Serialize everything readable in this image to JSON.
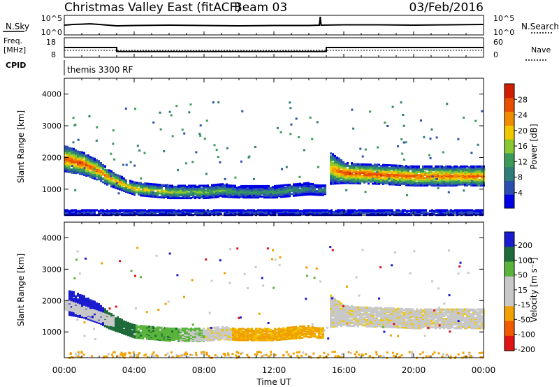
{
  "header": {
    "title": "Christmas Valley East (fitACF)",
    "beam": "Beam 03",
    "date": "03/Feb/2016"
  },
  "params": {
    "nsky_label": "N.Sky",
    "nsky_ticks": [
      "10^5",
      "10^0"
    ],
    "nsearch_label": "N.Search",
    "nsearch_ticks": [
      "10^5",
      "10^0"
    ],
    "freq_label": "Freq.",
    "freq_unit": "[MHz]",
    "freq_ticks": [
      "18",
      "8"
    ],
    "nave_label": "Nave",
    "nave_ticks": [
      "60",
      "0"
    ],
    "cpid_label": "CPID",
    "cpid_value": "themis 3300 RF"
  },
  "panels": {
    "power": {
      "ylabel": "Slant Range [km]",
      "yticks": [
        "4000",
        "3000",
        "2000",
        "1000"
      ],
      "cbar_label": "Power [dB]",
      "cbar_ticks": [
        "28",
        "24",
        "20",
        "16",
        "12",
        "8",
        "4"
      ]
    },
    "velocity": {
      "ylabel": "Slant Range [km]",
      "yticks": [
        "4000",
        "3000",
        "2000",
        "1000"
      ],
      "cbar_label": "Velocity [m s⁻¹]",
      "cbar_ticks": [
        "200",
        "100",
        "50",
        "15",
        "-15",
        "-50",
        "-100",
        "-200"
      ]
    }
  },
  "xaxis": {
    "label": "Time UT",
    "ticks": [
      "00:00",
      "04:00",
      "08:00",
      "12:00",
      "16:00",
      "20:00",
      "00:00"
    ]
  },
  "colors": {
    "power_scale": [
      "#0000e6",
      "#2a4fb0",
      "#2f7d7a",
      "#3a9a5a",
      "#8ac832",
      "#f0c800",
      "#f08c00",
      "#e85000",
      "#d21e00"
    ],
    "velocity_scale": [
      "#1a1ad0",
      "#1f6a3a",
      "#5ab43c",
      "#c8c8c8",
      "#c8c8c8",
      "#f0a000",
      "#f05a00",
      "#e01414"
    ]
  },
  "chart_data": [
    {
      "type": "line",
      "name": "N.Sky",
      "x_hours": [
        0,
        0.5,
        1,
        1.5,
        2,
        3,
        4,
        6,
        8,
        10,
        12,
        14,
        14.6,
        14.65,
        14.7,
        16,
        18,
        20,
        22,
        24
      ],
      "log10_value": [
        2.5,
        2.7,
        2.8,
        2.9,
        2.7,
        2.3,
        2.4,
        2.5,
        2.4,
        2.3,
        2.4,
        2.4,
        2.5,
        5.0,
        2.5,
        2.6,
        2.6,
        2.5,
        2.6,
        2.7
      ],
      "ylim_log10": [
        0,
        5
      ]
    },
    {
      "type": "line",
      "name": "Freq.",
      "x_hours": [
        0,
        3.0,
        3.0,
        15.0,
        15.0,
        24
      ],
      "values_mhz": [
        13,
        13,
        10.6,
        10.6,
        13,
        13
      ],
      "ylim": [
        8,
        18
      ]
    },
    {
      "type": "line",
      "name": "Nave",
      "x_hours": [
        0,
        24
      ],
      "values": [
        20,
        20
      ],
      "ylim": [
        0,
        60
      ]
    },
    {
      "type": "heatmap",
      "name": "Power",
      "x_range_hours": [
        0,
        24
      ],
      "y_range_km": [
        180,
        4500
      ],
      "bands": [
        {
          "name": "early echo",
          "x_hours": [
            0,
            1,
            2,
            2.5,
            3.5,
            4,
            5,
            6,
            7,
            8,
            9,
            10,
            12,
            13,
            14,
            14.5,
            15
          ],
          "center_km": [
            2000,
            1850,
            1600,
            1400,
            1150,
            1050,
            1000,
            950,
            950,
            950,
            1000,
            950,
            950,
            1000,
            1050,
            1000,
            1000
          ],
          "width_km": [
            400,
            350,
            300,
            250,
            200,
            200,
            200,
            200,
            200,
            200,
            200,
            180,
            180,
            180,
            180,
            150,
            150
          ],
          "peak_db": [
            30,
            30,
            28,
            26,
            24,
            24,
            22,
            20,
            18,
            18,
            16,
            14,
            14,
            14,
            12,
            12,
            12
          ]
        },
        {
          "name": "late echo",
          "x_hours": [
            15.2,
            16,
            18,
            20,
            22,
            24
          ],
          "center_km": [
            1700,
            1550,
            1500,
            1450,
            1450,
            1450
          ],
          "width_km": [
            500,
            320,
            300,
            300,
            300,
            300
          ],
          "peak_db": [
            24,
            30,
            30,
            28,
            28,
            28
          ]
        },
        {
          "name": "ground scatter",
          "x_hours": [
            0,
            24
          ],
          "center_km": [
            300,
            300
          ],
          "width_km": [
            80,
            80
          ],
          "peak_db": [
            8,
            8
          ]
        }
      ],
      "colorbar_range_db": [
        0,
        32
      ]
    },
    {
      "type": "heatmap",
      "name": "Velocity",
      "x_range_hours": [
        0,
        24
      ],
      "y_range_km": [
        180,
        4500
      ],
      "segments": [
        {
          "x_hours": [
            0.2,
            2.2
          ],
          "velocity": 220
        },
        {
          "x_hours": [
            2.2,
            4.0
          ],
          "velocity": 120
        },
        {
          "x_hours": [
            4.0,
            6.5
          ],
          "velocity": 60
        },
        {
          "x_hours": [
            6.5,
            8.0
          ],
          "velocity": 30
        },
        {
          "x_hours": [
            8.0,
            9.5
          ],
          "velocity": 0
        },
        {
          "x_hours": [
            9.5,
            14.8
          ],
          "velocity": -60
        },
        {
          "x_hours": [
            15.0,
            24.0
          ],
          "velocity": 0
        }
      ],
      "colorbar_range": [
        -250,
        250
      ]
    }
  ]
}
